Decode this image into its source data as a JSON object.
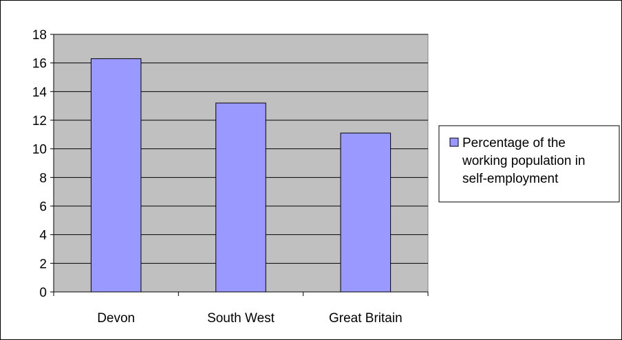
{
  "chart_data": {
    "type": "bar",
    "categories": [
      "Devon",
      "South West",
      "Great Britain"
    ],
    "series": [
      {
        "name": "Percentage of the working population in self-employment",
        "values": [
          16.3,
          13.2,
          11.1
        ],
        "color": "#9999ff"
      }
    ],
    "y_ticks": [
      "0",
      "2",
      "4",
      "6",
      "8",
      "10",
      "12",
      "14",
      "16",
      "18"
    ],
    "ylim": [
      0,
      18
    ],
    "plot_background": "#c0c0c0",
    "gridlines": true,
    "legend": {
      "position": "right",
      "lines": [
        "Percentage of the",
        "working population in",
        "self-employment"
      ]
    }
  }
}
